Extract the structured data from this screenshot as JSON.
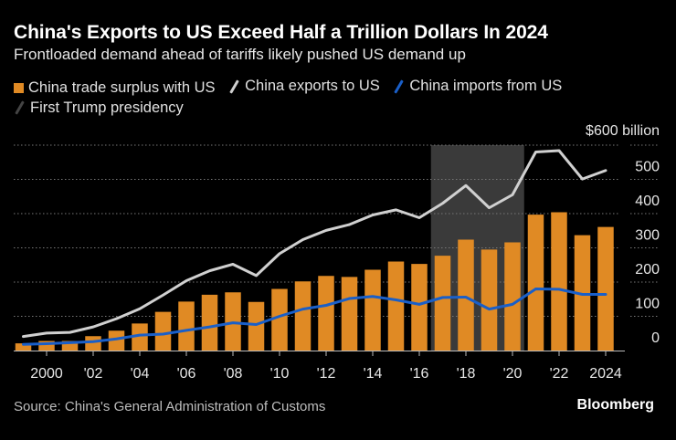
{
  "header": {
    "title": "China's Exports to US Exceed Half a Trillion Dollars In 2024",
    "subtitle": "Frontloaded demand ahead of tariffs likely pushed US demand up"
  },
  "footer": {
    "source": "Source: China's General Administration of Customs",
    "brand": "Bloomberg"
  },
  "chart_data": {
    "type": "bar+line",
    "title": "China's Exports to US Exceed Half a Trillion Dollars In 2024",
    "subtitle": "Frontloaded demand ahead of tariffs likely pushed US demand up",
    "y_unit_label": "$600 billion",
    "ylim": [
      0,
      600
    ],
    "y_ticks": [
      "0",
      "100",
      "200",
      "300",
      "400",
      "500"
    ],
    "y_axis_side": "right",
    "grid": "horizontal dotted",
    "legend_placement": "top",
    "x": [
      1999,
      2000,
      2001,
      2002,
      2003,
      2004,
      2005,
      2006,
      2007,
      2008,
      2009,
      2010,
      2011,
      2012,
      2013,
      2014,
      2015,
      2016,
      2017,
      2018,
      2019,
      2020,
      2021,
      2022,
      2023,
      2024
    ],
    "x_ticks": [
      {
        "year": 2000,
        "label": "2000"
      },
      {
        "year": 2002,
        "label": "'02"
      },
      {
        "year": 2004,
        "label": "'04"
      },
      {
        "year": 2006,
        "label": "'06"
      },
      {
        "year": 2008,
        "label": "'08"
      },
      {
        "year": 2010,
        "label": "'10"
      },
      {
        "year": 2012,
        "label": "'12"
      },
      {
        "year": 2014,
        "label": "'14"
      },
      {
        "year": 2016,
        "label": "'16"
      },
      {
        "year": 2018,
        "label": "'18"
      },
      {
        "year": 2020,
        "label": "'20"
      },
      {
        "year": 2022,
        "label": "'22"
      },
      {
        "year": 2024,
        "label": "2024"
      }
    ],
    "series": [
      {
        "name": "China trade surplus with US",
        "kind": "bar",
        "color": "#e08a24",
        "values": [
          21,
          28,
          28,
          42,
          58,
          79,
          113,
          143,
          163,
          170,
          142,
          180,
          202,
          218,
          215,
          236,
          260,
          253,
          277,
          324,
          295,
          316,
          397,
          404,
          337,
          361
        ]
      },
      {
        "name": "China exports to US",
        "kind": "line",
        "color": "#d0d0d0",
        "values": [
          41,
          51,
          53,
          69,
          93,
          122,
          162,
          204,
          233,
          252,
          219,
          283,
          324,
          351,
          368,
          396,
          411,
          388,
          430,
          482,
          417,
          455,
          580,
          584,
          501,
          526
        ]
      },
      {
        "name": "China imports from US",
        "kind": "line",
        "color": "#1a5fc8",
        "values": [
          18,
          20,
          23,
          26,
          34,
          45,
          48,
          59,
          69,
          81,
          76,
          100,
          121,
          132,
          152,
          158,
          148,
          135,
          155,
          156,
          121,
          135,
          180,
          179,
          164,
          164
        ]
      }
    ],
    "shaded_regions": [
      {
        "name": "First Trump presidency",
        "start": 2017,
        "end": 2021,
        "color": "#3a3a3a"
      }
    ]
  }
}
